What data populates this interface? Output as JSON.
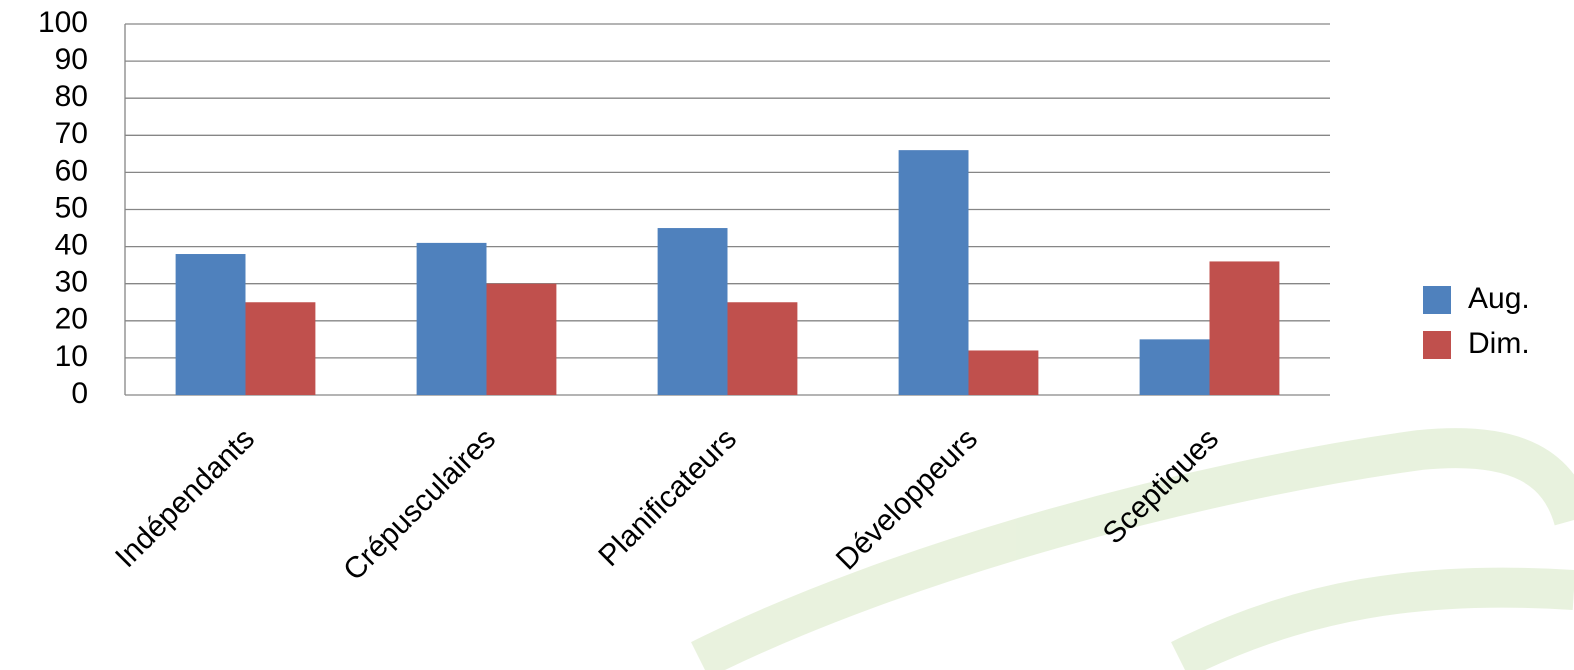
{
  "chart_data": {
    "type": "bar",
    "categories": [
      "Indépendants",
      "Crépusculaires",
      "Planificateurs",
      "Développeurs",
      "Sceptiques"
    ],
    "series": [
      {
        "name": "Aug.",
        "color": "#4f81bd",
        "values": [
          38,
          41,
          45,
          66,
          15
        ]
      },
      {
        "name": "Dim.",
        "color": "#c0504d",
        "values": [
          25,
          30,
          25,
          12,
          36
        ]
      }
    ],
    "ylim": [
      0,
      100
    ],
    "yticks": [
      0,
      10,
      20,
      30,
      40,
      50,
      60,
      70,
      80,
      90,
      100
    ],
    "grid": true,
    "legend": "right"
  }
}
